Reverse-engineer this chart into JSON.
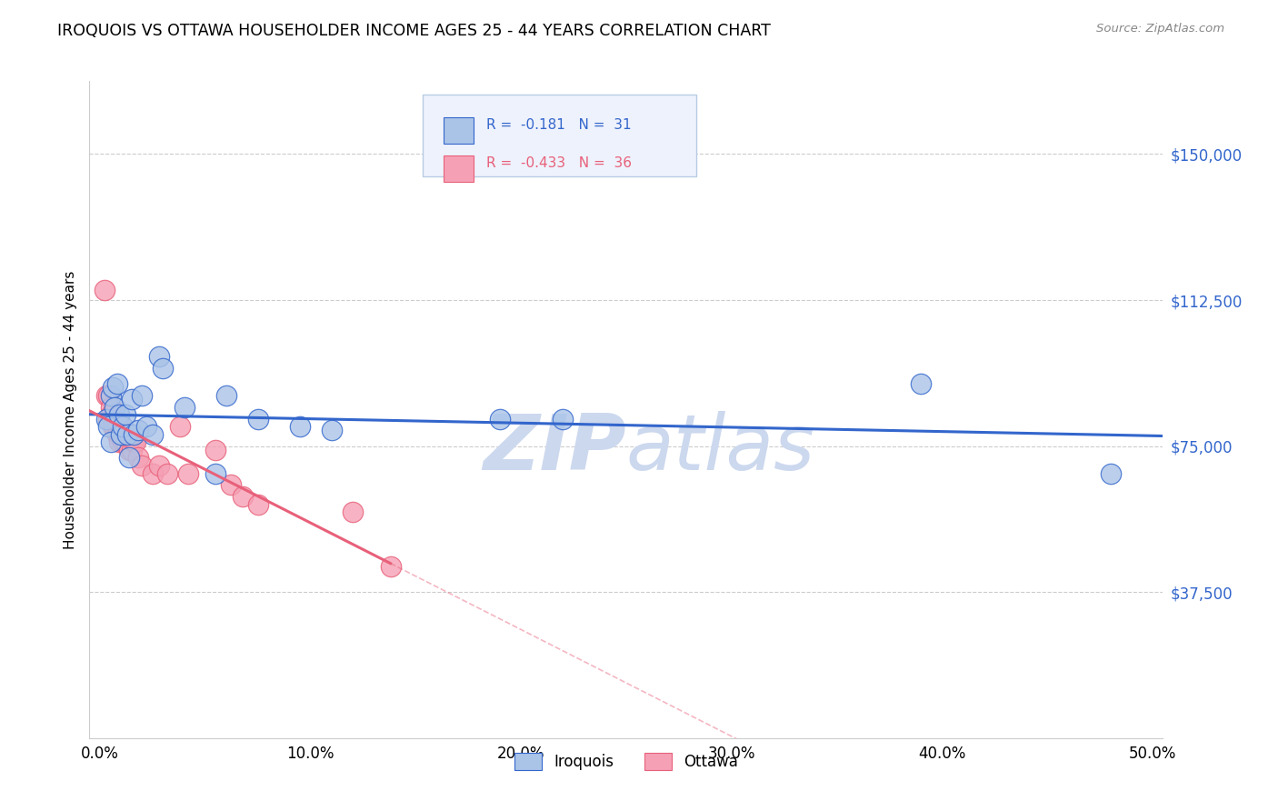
{
  "title": "IROQUOIS VS OTTAWA HOUSEHOLDER INCOME AGES 25 - 44 YEARS CORRELATION CHART",
  "source": "Source: ZipAtlas.com",
  "ylabel": "Householder Income Ages 25 - 44 years",
  "xlabel_ticks": [
    "0.0%",
    "10.0%",
    "20.0%",
    "30.0%",
    "40.0%",
    "50.0%"
  ],
  "xlabel_vals": [
    0.0,
    0.1,
    0.2,
    0.3,
    0.4,
    0.5
  ],
  "ytick_labels": [
    "$37,500",
    "$75,000",
    "$112,500",
    "$150,000"
  ],
  "ytick_vals": [
    37500,
    75000,
    112500,
    150000
  ],
  "ylim": [
    0,
    168750
  ],
  "xlim": [
    -0.005,
    0.505
  ],
  "iroquois_R": -0.181,
  "iroquois_N": 31,
  "ottawa_R": -0.433,
  "ottawa_N": 36,
  "iroquois_color": "#aac4e8",
  "ottawa_color": "#f5a0b5",
  "iroquois_line_color": "#3366cc",
  "ottawa_line_color": "#e8607a",
  "watermark_color": "#ccd8ee",
  "iroquois_x": [
    0.003,
    0.004,
    0.005,
    0.005,
    0.006,
    0.007,
    0.008,
    0.009,
    0.01,
    0.011,
    0.012,
    0.013,
    0.014,
    0.015,
    0.016,
    0.018,
    0.02,
    0.022,
    0.025,
    0.028,
    0.03,
    0.04,
    0.055,
    0.06,
    0.075,
    0.095,
    0.11,
    0.19,
    0.22,
    0.39,
    0.48
  ],
  "iroquois_y": [
    82000,
    80000,
    88000,
    76000,
    90000,
    85000,
    91000,
    83000,
    78000,
    80000,
    83000,
    78000,
    72000,
    87000,
    78000,
    79000,
    88000,
    80000,
    78000,
    98000,
    95000,
    85000,
    68000,
    88000,
    82000,
    80000,
    79000,
    82000,
    82000,
    91000,
    68000
  ],
  "ottawa_x": [
    0.002,
    0.003,
    0.004,
    0.004,
    0.005,
    0.005,
    0.006,
    0.006,
    0.007,
    0.007,
    0.008,
    0.008,
    0.009,
    0.009,
    0.01,
    0.01,
    0.011,
    0.012,
    0.013,
    0.014,
    0.015,
    0.016,
    0.017,
    0.018,
    0.02,
    0.025,
    0.028,
    0.032,
    0.038,
    0.042,
    0.055,
    0.062,
    0.068,
    0.075,
    0.12,
    0.138
  ],
  "ottawa_y": [
    115000,
    88000,
    88000,
    82000,
    85000,
    83000,
    82000,
    80000,
    82000,
    80000,
    80000,
    78000,
    78000,
    76000,
    80000,
    78000,
    76000,
    76000,
    78000,
    74000,
    74000,
    76000,
    76000,
    72000,
    70000,
    68000,
    70000,
    68000,
    80000,
    68000,
    74000,
    65000,
    62000,
    60000,
    58000,
    44000
  ],
  "legend_box_color": "#eef2fc",
  "legend_border_color": "#b8cce4"
}
